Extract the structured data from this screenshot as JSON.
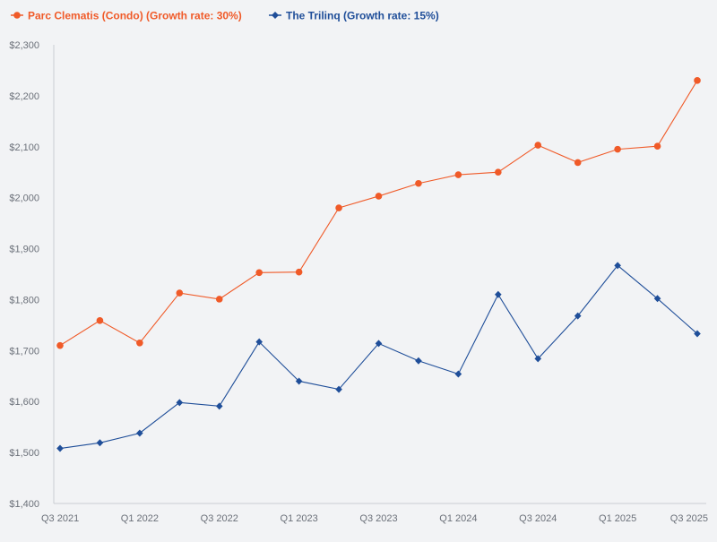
{
  "chart_data": {
    "type": "line",
    "title": "",
    "xlabel": "",
    "ylabel": "",
    "categories": [
      "Q3 2021",
      "Q4 2021",
      "Q1 2022",
      "Q2 2022",
      "Q3 2022",
      "Q4 2022",
      "Q1 2023",
      "Q2 2023",
      "Q3 2023",
      "Q4 2023",
      "Q1 2024",
      "Q2 2024",
      "Q3 2024",
      "Q4 2024",
      "Q1 2025",
      "Q2 2025",
      "Q3 2025"
    ],
    "x_tick_labels": [
      "Q3 2021",
      "Q1 2022",
      "Q3 2022",
      "Q1 2023",
      "Q3 2023",
      "Q1 2024",
      "Q3 2024",
      "Q1 2025",
      "Q3 2025"
    ],
    "ylim": [
      1400,
      2300
    ],
    "y_ticks": [
      1400,
      1500,
      1600,
      1700,
      1800,
      1900,
      2000,
      2100,
      2200,
      2300
    ],
    "y_tick_labels": [
      "$1,400",
      "$1,500",
      "$1,600",
      "$1,700",
      "$1,800",
      "$1,900",
      "$2,000",
      "$2,100",
      "$2,200",
      "$2,300"
    ],
    "grid": false,
    "legend_position": "top-left",
    "series": [
      {
        "name": "Parc Clematis (Condo) (Growth rate: 30%)",
        "color": "#f05a28",
        "marker": "circle",
        "values": [
          1710,
          1759,
          1715,
          1813,
          1801,
          1853,
          1854,
          1980,
          2003,
          2028,
          2045,
          2050,
          2103,
          2069,
          2095,
          2101,
          2230
        ]
      },
      {
        "name": "The Trilinq (Growth rate: 15%)",
        "color": "#1f4e99",
        "marker": "diamond",
        "values": [
          1508,
          1519,
          1538,
          1598,
          1591,
          1717,
          1640,
          1624,
          1714,
          1680,
          1654,
          1810,
          1684,
          1768,
          1867,
          1802,
          1733
        ]
      }
    ]
  }
}
